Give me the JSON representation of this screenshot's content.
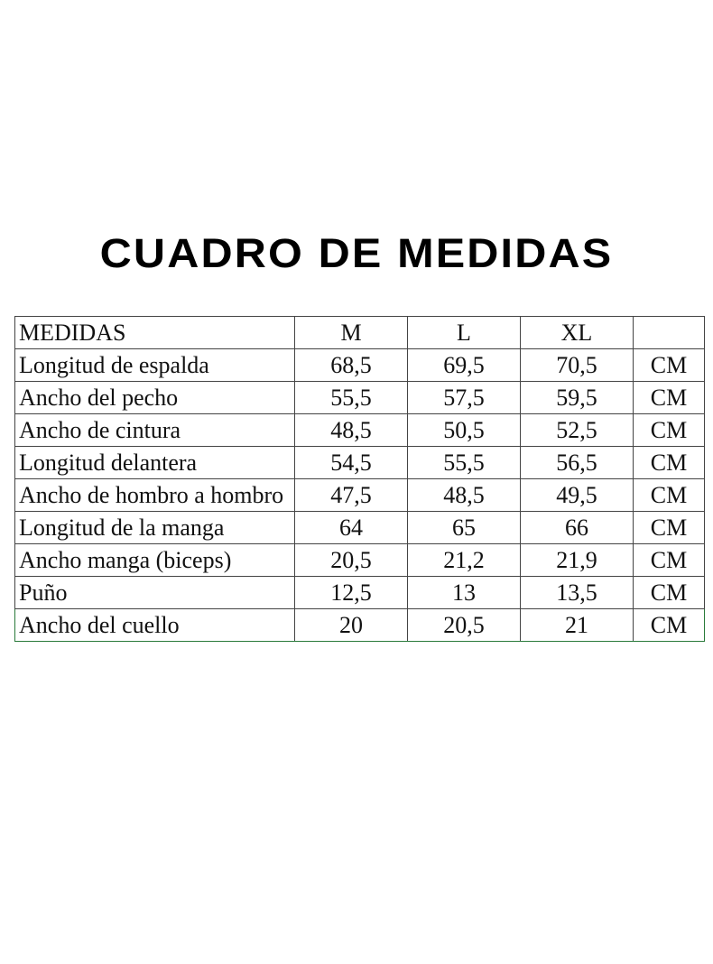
{
  "title": "CUADRO DE MEDIDAS",
  "table": {
    "headers": [
      "MEDIDAS",
      "M",
      "L",
      "XL",
      ""
    ],
    "rows": [
      {
        "label": "Longitud de espalda",
        "m": "68,5",
        "l": "69,5",
        "xl": "70,5",
        "unit": "CM"
      },
      {
        "label": "Ancho del pecho",
        "m": "55,5",
        "l": "57,5",
        "xl": "59,5",
        "unit": "CM"
      },
      {
        "label": "Ancho de cintura",
        "m": "48,5",
        "l": "50,5",
        "xl": "52,5",
        "unit": "CM"
      },
      {
        "label": "Longitud delantera",
        "m": "54,5",
        "l": "55,5",
        "xl": "56,5",
        "unit": "CM"
      },
      {
        "label": "Ancho de hombro a hombro",
        "m": "47,5",
        "l": "48,5",
        "xl": "49,5",
        "unit": "CM"
      },
      {
        "label": "Longitud de la manga",
        "m": "64",
        "l": "65",
        "xl": "66",
        "unit": "CM"
      },
      {
        "label": "Ancho manga (biceps)",
        "m": "20,5",
        "l": "21,2",
        "xl": "21,9",
        "unit": "CM"
      },
      {
        "label": "Puño",
        "m": "12,5",
        "l": "13",
        "xl": "13,5",
        "unit": "CM"
      },
      {
        "label": "Ancho del cuello",
        "m": "20",
        "l": "20,5",
        "xl": "21",
        "unit": "CM"
      }
    ]
  }
}
